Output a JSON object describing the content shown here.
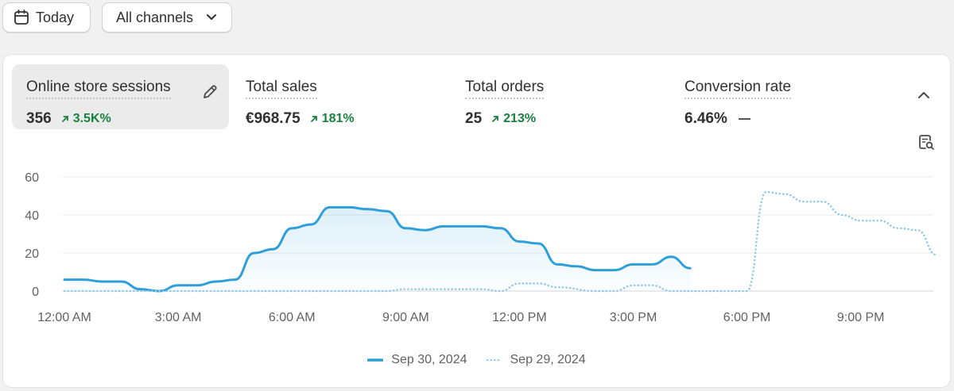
{
  "toolbar": {
    "today_label": "Today",
    "channels_label": "All channels"
  },
  "metrics": [
    {
      "title": "Online store sessions",
      "value": "356",
      "delta": "3.5K%",
      "trend": "up"
    },
    {
      "title": "Total sales",
      "value": "€968.75",
      "delta": "181%",
      "trend": "up"
    },
    {
      "title": "Total orders",
      "value": "25",
      "delta": "213%",
      "trend": "up"
    },
    {
      "title": "Conversion rate",
      "value": "6.46%",
      "delta": "",
      "trend": "flat"
    }
  ],
  "icons": {
    "calendar": "calendar-icon",
    "chevron_down": "chevron-down-icon",
    "edit": "pencil-icon",
    "collapse": "chevron-up-icon",
    "explore": "report-search-icon"
  },
  "colors": {
    "series_current": "#2e9fd9",
    "series_previous": "#8cc8ea",
    "positive": "#19813f",
    "active_bg": "#ebebeb"
  },
  "chart_data": {
    "type": "line",
    "ylim": [
      0,
      60
    ],
    "yticks": [
      "0",
      "20",
      "40",
      "60"
    ],
    "xticks": [
      "12:00 AM",
      "3:00 AM",
      "6:00 AM",
      "9:00 AM",
      "12:00 PM",
      "3:00 PM",
      "6:00 PM",
      "9:00 PM"
    ],
    "grid": true,
    "legend_position": "bottom",
    "series": [
      {
        "name": "Sep 30, 2024",
        "style": "solid",
        "x": [
          0,
          0.5,
          1,
          1.5,
          2,
          2.5,
          3,
          3.5,
          4,
          4.5,
          5,
          5.5,
          6,
          6.5,
          7,
          7.5,
          8,
          8.5,
          9,
          9.5,
          10,
          10.5,
          11,
          11.5,
          12,
          12.5,
          13,
          13.5,
          14,
          14.5,
          15,
          15.5,
          16,
          16.5
        ],
        "values": [
          6,
          6,
          5,
          5,
          1,
          0,
          3,
          3,
          5,
          6,
          20,
          22,
          33,
          35,
          44,
          44,
          43,
          42,
          33,
          32,
          34,
          34,
          34,
          33,
          26,
          25,
          14,
          13,
          11,
          11,
          14,
          14,
          18,
          12
        ]
      },
      {
        "name": "Sep 29, 2024",
        "style": "dotted",
        "x": [
          0,
          1,
          2,
          3,
          4,
          5,
          6,
          7,
          8,
          8.5,
          9,
          9.5,
          10,
          11,
          11.5,
          12,
          12.5,
          13,
          14,
          14.5,
          15,
          15.5,
          16,
          17,
          17.5,
          18,
          18.5,
          19,
          19.5,
          20,
          20.5,
          21,
          21.5,
          22,
          22.5,
          23
        ],
        "values": [
          0,
          0,
          0,
          0,
          0,
          0,
          0,
          0,
          0,
          0,
          1,
          1,
          1,
          1,
          0,
          4,
          4,
          2,
          0,
          0,
          3,
          3,
          0,
          0,
          0,
          0,
          52,
          51,
          47,
          47,
          40,
          37,
          37,
          33,
          32,
          19
        ]
      }
    ]
  }
}
